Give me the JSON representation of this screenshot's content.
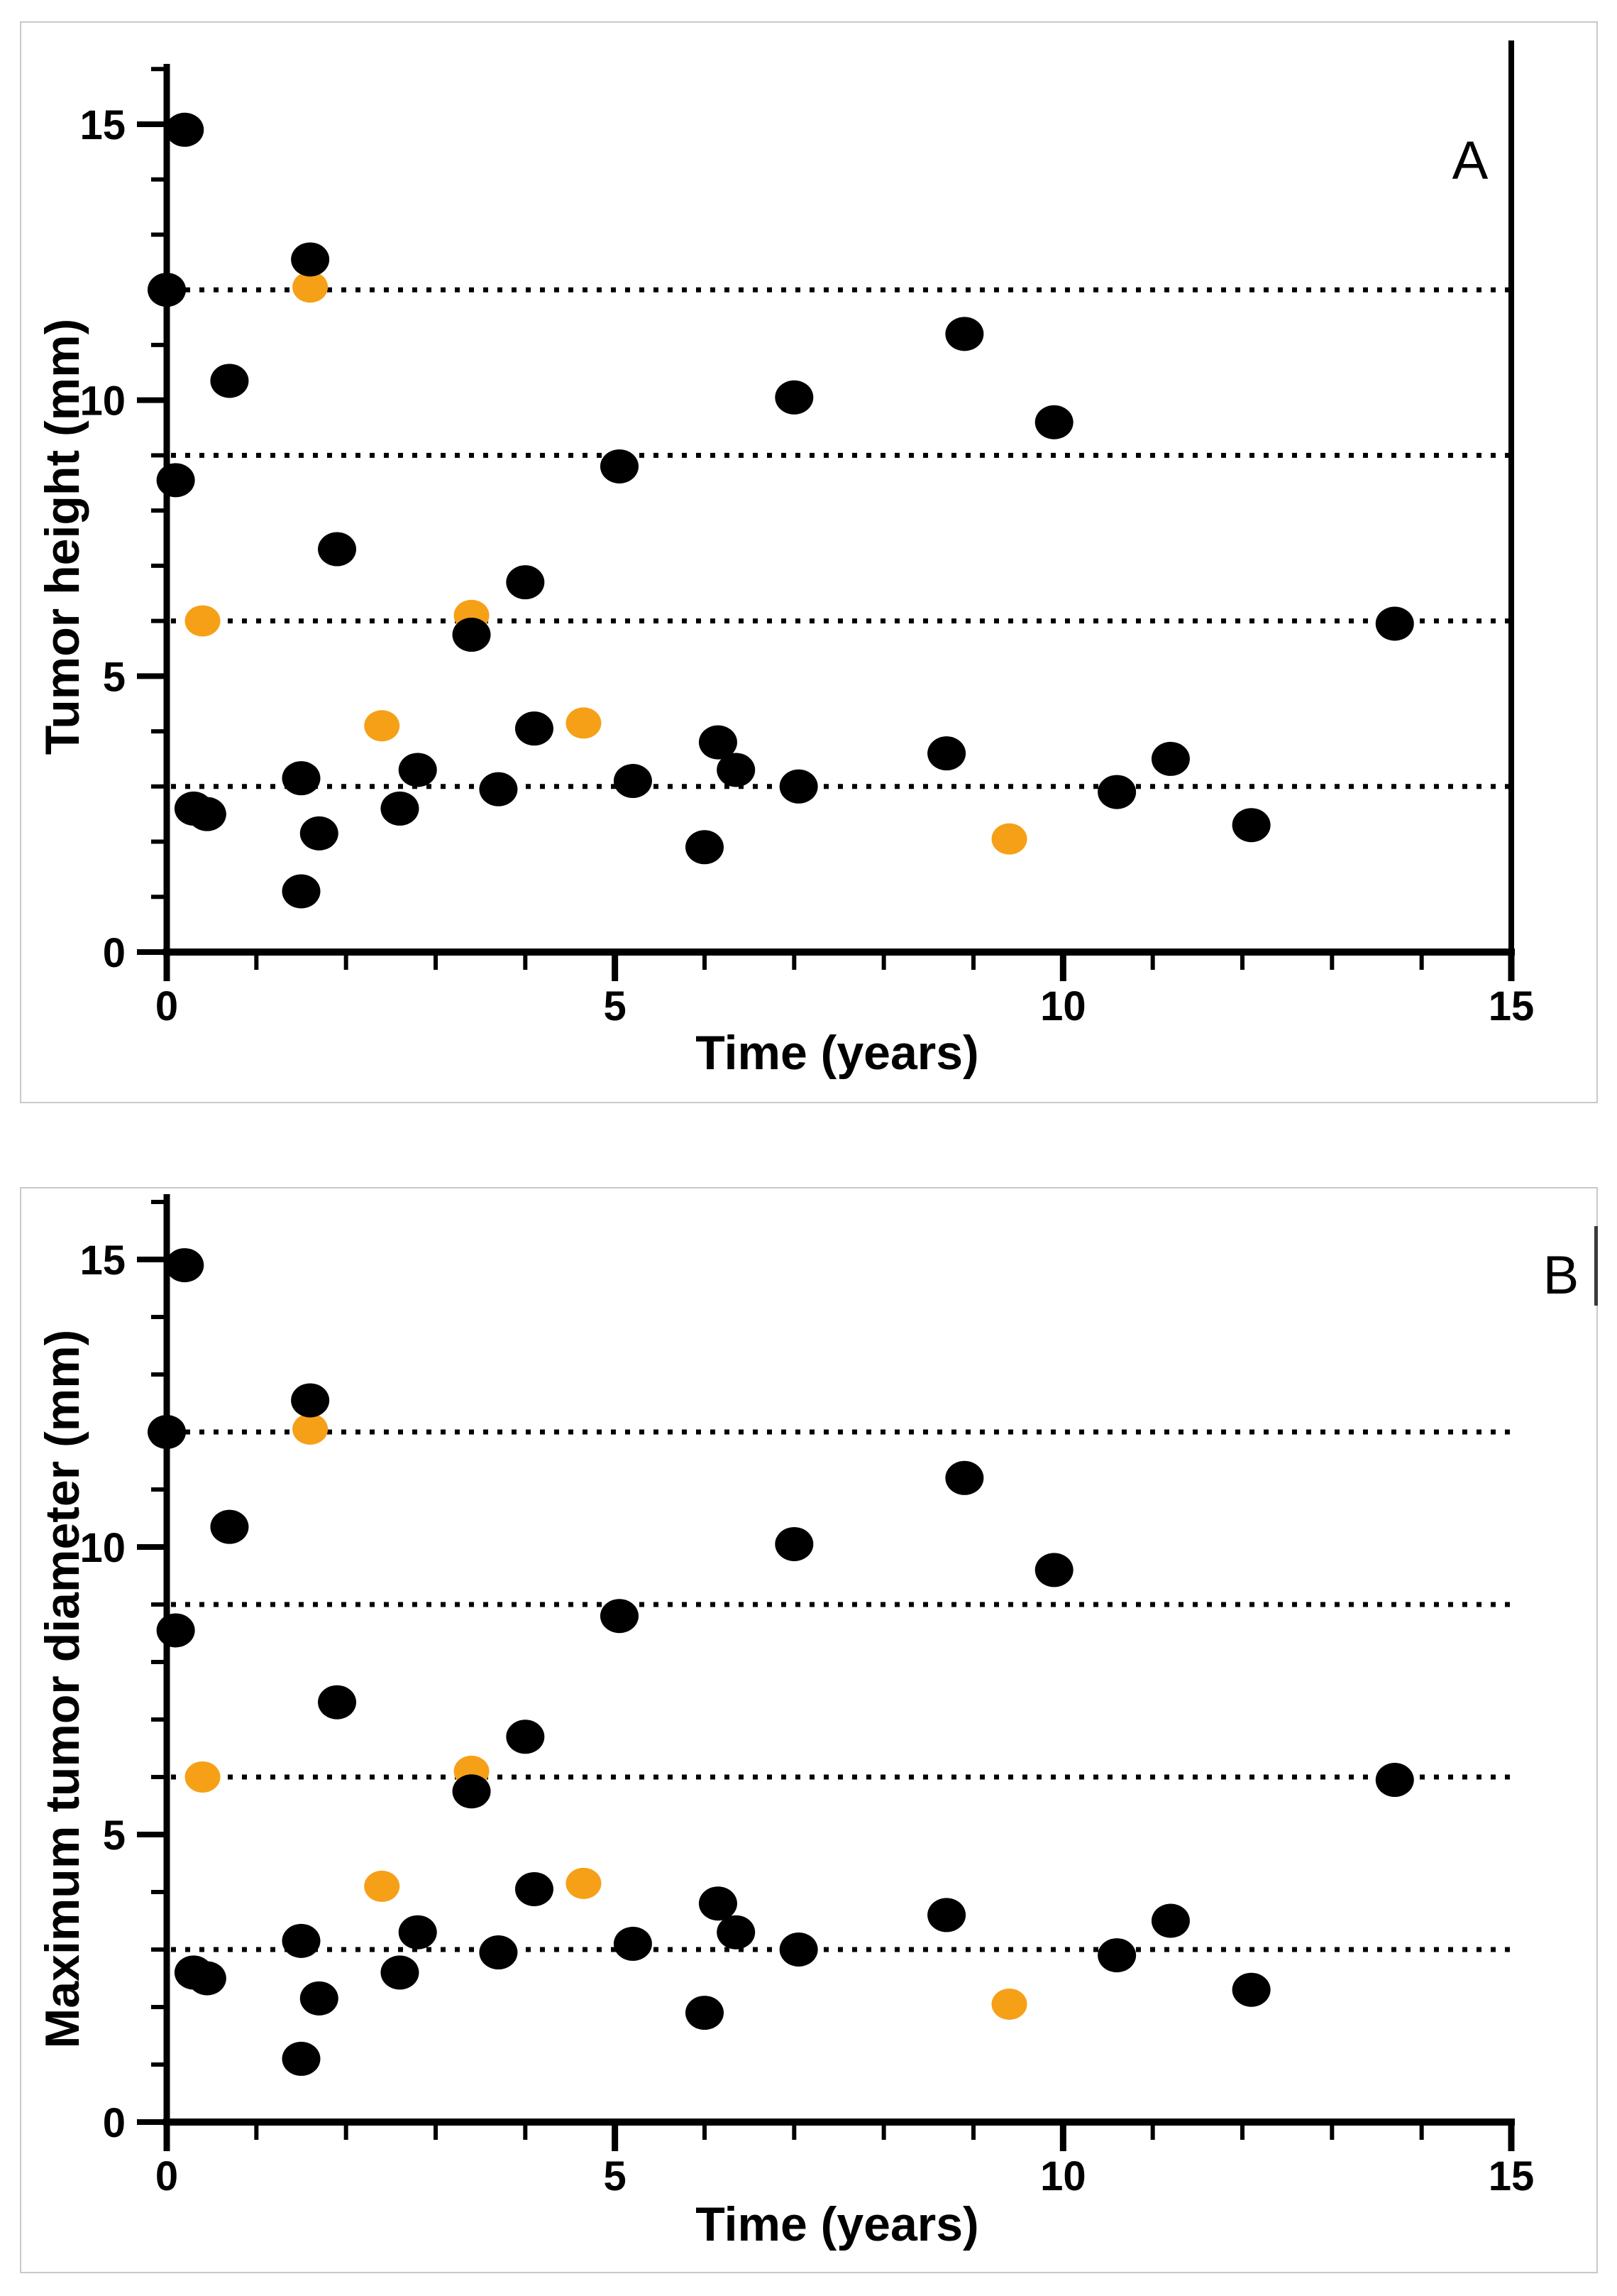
{
  "figure": {
    "background": "#ffffff",
    "panel_border_color": "#c9c9c9",
    "panels": [
      {
        "panel_label": "A",
        "xlabel": "Time (years)",
        "ylabel": "Tumor height (mm)"
      },
      {
        "panel_label": "B",
        "xlabel": "Time (years)",
        "ylabel": "Maximum tumor diameter (mm)"
      }
    ]
  },
  "chart_data": [
    {
      "type": "scatter",
      "panel_label": "A",
      "xlabel": "Time (years)",
      "ylabel": "Tumor height (mm)",
      "xlim": [
        0,
        15
      ],
      "ylim": [
        0,
        16
      ],
      "x_tick_labels": [
        0,
        5,
        10,
        15
      ],
      "y_tick_labels": [
        0,
        5,
        10,
        15
      ],
      "minor_tick_step": 1,
      "grid": "dotted horizontal lines",
      "dotted_gridlines_y": [
        3,
        6,
        9,
        12
      ],
      "legend_position": "none",
      "series": [
        {
          "name": "black-markers",
          "color": "#000000",
          "marker": "filled-ellipse",
          "points": [
            [
              0.2,
              14.9
            ],
            [
              0.0,
              12.0
            ],
            [
              1.6,
              12.55
            ],
            [
              0.7,
              10.35
            ],
            [
              7.0,
              10.05
            ],
            [
              0.1,
              8.55
            ],
            [
              5.05,
              8.8
            ],
            [
              1.9,
              7.3
            ],
            [
              4.0,
              6.7
            ],
            [
              3.4,
              5.75
            ],
            [
              8.9,
              11.2
            ],
            [
              9.9,
              9.6
            ],
            [
              13.7,
              5.95
            ],
            [
              6.15,
              3.8
            ],
            [
              4.1,
              4.05
            ],
            [
              8.7,
              3.6
            ],
            [
              11.2,
              3.5
            ],
            [
              2.8,
              3.3
            ],
            [
              6.35,
              3.3
            ],
            [
              1.5,
              3.15
            ],
            [
              5.2,
              3.1
            ],
            [
              7.05,
              3.0
            ],
            [
              3.7,
              2.95
            ],
            [
              10.6,
              2.9
            ],
            [
              0.3,
              2.6
            ],
            [
              2.6,
              2.6
            ],
            [
              0.45,
              2.5
            ],
            [
              12.1,
              2.3
            ],
            [
              1.7,
              2.15
            ],
            [
              6.0,
              1.9
            ],
            [
              1.5,
              1.1
            ]
          ]
        },
        {
          "name": "orange-markers",
          "color": "#F6A018",
          "marker": "filled-ellipse",
          "points": [
            [
              1.6,
              12.05
            ],
            [
              0.4,
              6.0
            ],
            [
              3.4,
              6.1
            ],
            [
              2.4,
              4.1
            ],
            [
              4.65,
              4.15
            ],
            [
              9.4,
              2.05
            ]
          ]
        }
      ]
    },
    {
      "type": "scatter",
      "panel_label": "B",
      "xlabel": "Time (years)",
      "ylabel": "Maximum tumor diameter (mm)",
      "xlim": [
        0,
        15
      ],
      "ylim": [
        0,
        16
      ],
      "x_tick_labels": [
        0,
        5,
        10,
        15
      ],
      "y_tick_labels": [
        0,
        5,
        10,
        15
      ],
      "minor_tick_step": 1,
      "grid": "dotted horizontal lines",
      "dotted_gridlines_y": [
        3,
        6,
        9,
        12
      ],
      "legend_position": "none",
      "series": [
        {
          "name": "black-markers",
          "color": "#000000",
          "marker": "filled-ellipse",
          "points": [
            [
              0.2,
              14.9
            ],
            [
              0.0,
              12.0
            ],
            [
              1.6,
              12.55
            ],
            [
              0.7,
              10.35
            ],
            [
              7.0,
              10.05
            ],
            [
              0.1,
              8.55
            ],
            [
              5.05,
              8.8
            ],
            [
              1.9,
              7.3
            ],
            [
              4.0,
              6.7
            ],
            [
              3.4,
              5.75
            ],
            [
              8.9,
              11.2
            ],
            [
              9.9,
              9.6
            ],
            [
              13.7,
              5.95
            ],
            [
              6.15,
              3.8
            ],
            [
              4.1,
              4.05
            ],
            [
              8.7,
              3.6
            ],
            [
              11.2,
              3.5
            ],
            [
              2.8,
              3.3
            ],
            [
              6.35,
              3.3
            ],
            [
              1.5,
              3.15
            ],
            [
              5.2,
              3.1
            ],
            [
              7.05,
              3.0
            ],
            [
              3.7,
              2.95
            ],
            [
              10.6,
              2.9
            ],
            [
              0.3,
              2.6
            ],
            [
              2.6,
              2.6
            ],
            [
              0.45,
              2.5
            ],
            [
              12.1,
              2.3
            ],
            [
              1.7,
              2.15
            ],
            [
              6.0,
              1.9
            ],
            [
              1.5,
              1.1
            ]
          ]
        },
        {
          "name": "orange-markers",
          "color": "#F6A018",
          "marker": "filled-ellipse",
          "points": [
            [
              1.6,
              12.05
            ],
            [
              0.4,
              6.0
            ],
            [
              3.4,
              6.1
            ],
            [
              2.4,
              4.1
            ],
            [
              4.65,
              4.15
            ],
            [
              9.4,
              2.05
            ]
          ]
        }
      ]
    }
  ]
}
